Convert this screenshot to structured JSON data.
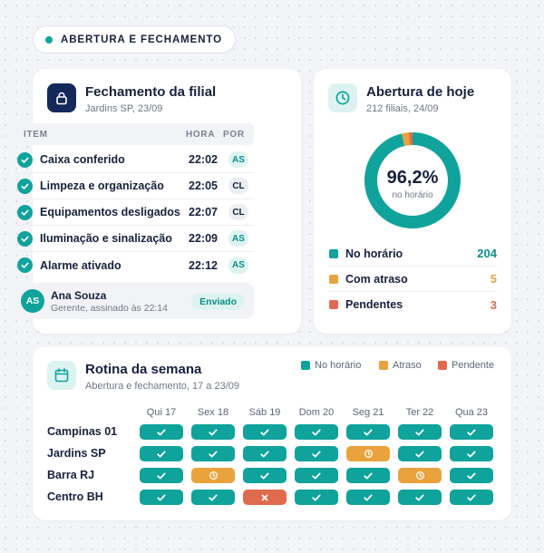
{
  "header": {
    "badge_label": "ABERTURA E FECHAMENTO"
  },
  "colors": {
    "teal": "#0fa39b",
    "orange": "#eaa23c",
    "red": "#e06a4d",
    "navy": "#14285a"
  },
  "closing": {
    "icon": "lock-icon",
    "title": "Fechamento da filial",
    "subtitle": "Jardins SP, 23/09",
    "columns": {
      "item": "ITEM",
      "time": "HORA",
      "by": "POR"
    },
    "items": [
      {
        "label": "Caixa conferido",
        "time": "22:02",
        "by": "AS"
      },
      {
        "label": "Limpeza e organização",
        "time": "22:05",
        "by": "CL"
      },
      {
        "label": "Equipamentos desligados",
        "time": "22:07",
        "by": "CL"
      },
      {
        "label": "Iluminação e sinalização",
        "time": "22:09",
        "by": "AS"
      },
      {
        "label": "Alarme ativado",
        "time": "22:12",
        "by": "AS"
      }
    ],
    "signoff": {
      "initials": "AS",
      "name": "Ana Souza",
      "role": "Gerente, assinado às 22:14",
      "status": "Enviado"
    }
  },
  "opening": {
    "icon": "clock-icon",
    "title": "Abertura de hoje",
    "subtitle": "212 filiais, 24/09",
    "donut": {
      "value_label": "96,2%",
      "caption": "no horário"
    },
    "legend": [
      {
        "label": "No horário",
        "value": "204",
        "count": 204,
        "color": "#0fa39b"
      },
      {
        "label": "Com atraso",
        "value": "5",
        "count": 5,
        "color": "#eaa23c"
      },
      {
        "label": "Pendentes",
        "value": "3",
        "count": 3,
        "color": "#e06a4d"
      }
    ]
  },
  "weekly": {
    "icon": "calendar-icon",
    "title": "Rotina da semana",
    "subtitle": "Abertura e fechamento, 17 a 23/09",
    "legend": [
      {
        "label": "No horário",
        "color": "#0fa39b"
      },
      {
        "label": "Atraso",
        "color": "#eaa23c"
      },
      {
        "label": "Pendente",
        "color": "#e06a4d"
      }
    ],
    "days": [
      "Qui 17",
      "Sex 18",
      "Sáb 19",
      "Dom 20",
      "Seg 21",
      "Ter 22",
      "Qua 23"
    ],
    "branches": [
      {
        "name": "Campinas 01",
        "status": [
          "ok",
          "ok",
          "ok",
          "ok",
          "ok",
          "ok",
          "ok"
        ]
      },
      {
        "name": "Jardins SP",
        "status": [
          "ok",
          "ok",
          "ok",
          "ok",
          "late",
          "ok",
          "ok"
        ]
      },
      {
        "name": "Barra RJ",
        "status": [
          "ok",
          "late",
          "ok",
          "ok",
          "ok",
          "late",
          "ok"
        ]
      },
      {
        "name": "Centro BH",
        "status": [
          "ok",
          "ok",
          "pending",
          "ok",
          "ok",
          "ok",
          "ok"
        ]
      }
    ]
  }
}
